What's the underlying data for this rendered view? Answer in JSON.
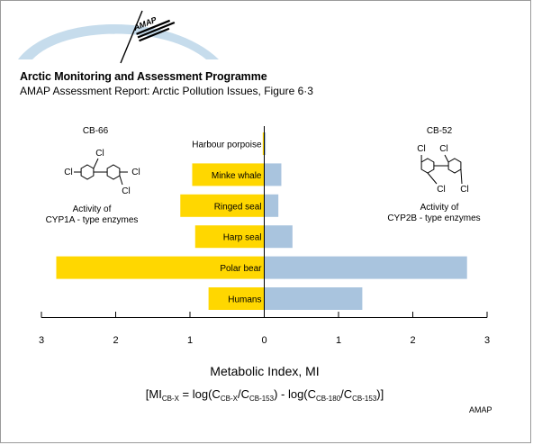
{
  "header": {
    "logo_text": "AMAP",
    "title": "Arctic Monitoring and Assessment Programme",
    "subtitle": "AMAP Assessment Report: Arctic Pollution Issues, Figure 6·3"
  },
  "left_panel": {
    "compound": "CB-66",
    "substituent_label": "Cl",
    "caption_line1": "Activity of",
    "caption_line2": "CYP1A - type enzymes"
  },
  "right_panel": {
    "compound": "CB-52",
    "substituent_label": "Cl",
    "caption_line1": "Activity of",
    "caption_line2": "CYP2B - type enzymes"
  },
  "footer": {
    "credit": "AMAP"
  },
  "chart_data": {
    "type": "bar",
    "orientation": "horizontal-diverging",
    "categories": [
      "Harbour porpoise",
      "Minke whale",
      "Ringed seal",
      "Harp seal",
      "Polar bear",
      "Humans"
    ],
    "series": [
      {
        "name": "CB-66",
        "color": "#ffd700",
        "direction": "left",
        "values": [
          0.02,
          0.97,
          1.13,
          0.93,
          2.8,
          0.75
        ]
      },
      {
        "name": "CB-52",
        "color": "#a9c4de",
        "direction": "right",
        "values": [
          0.02,
          0.23,
          0.19,
          0.38,
          2.73,
          1.32
        ]
      }
    ],
    "xlabel": "Metabolic Index, MI",
    "formula": {
      "lead": "[MI",
      "sub1": "CB-X",
      "mid1": " = log(C",
      "sub2": "CB-X",
      "mid2": "/C",
      "sub3": "CB-153",
      "mid3": ") - log(C",
      "sub4": "CB-180",
      "mid4": "/C",
      "sub5": "CB-153",
      "tail": ")]"
    },
    "xticks": [
      3,
      2,
      1,
      0,
      1,
      2,
      3
    ],
    "xlim": [
      -3,
      3
    ],
    "grid": false
  }
}
